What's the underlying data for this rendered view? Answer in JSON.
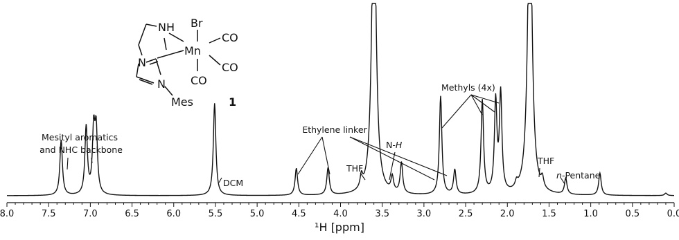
{
  "chart_data": {
    "type": "line",
    "xlabel": "¹H [ppm]",
    "xlim": [
      8.0,
      0.0
    ],
    "x_reversed": true,
    "ticks": [
      "8.0",
      "7.5",
      "7.0",
      "6.5",
      "6.0",
      "5.5",
      "5.0",
      "4.5",
      "4.0",
      "3.5",
      "3.0",
      "2.5",
      "2.0",
      "1.5",
      "1.0",
      "0.5",
      "0.0"
    ],
    "tick_values": [
      8.0,
      7.5,
      7.0,
      6.5,
      6.0,
      5.5,
      5.0,
      4.5,
      4.0,
      3.5,
      3.0,
      2.5,
      2.0,
      1.5,
      1.0,
      0.5,
      0.0
    ],
    "grid": false,
    "y_axis_shown": false,
    "series": [
      {
        "peaks": [
          {
            "ppm": 7.35,
            "height": 0.45
          },
          {
            "ppm": 7.05,
            "height": 0.55
          },
          {
            "ppm": 6.96,
            "height": 0.5
          },
          {
            "ppm": 6.93,
            "height": 0.5
          },
          {
            "ppm": 5.51,
            "height": 0.75
          },
          {
            "ppm": 4.53,
            "height": 0.22
          },
          {
            "ppm": 4.15,
            "height": 0.22
          },
          {
            "ppm": 3.75,
            "height": 0.1
          },
          {
            "ppm": 3.6,
            "height": 2.6
          },
          {
            "ppm": 3.38,
            "height": 0.12
          },
          {
            "ppm": 3.27,
            "height": 0.25
          },
          {
            "ppm": 2.8,
            "height": 0.8
          },
          {
            "ppm": 2.63,
            "height": 0.2
          },
          {
            "ppm": 2.3,
            "height": 0.76
          },
          {
            "ppm": 2.14,
            "height": 0.74
          },
          {
            "ppm": 2.08,
            "height": 0.8
          },
          {
            "ppm": 1.89,
            "height": 0.05
          },
          {
            "ppm": 1.73,
            "height": 2.6
          },
          {
            "ppm": 1.58,
            "height": 0.08
          },
          {
            "ppm": 1.3,
            "height": 0.13
          },
          {
            "ppm": 0.89,
            "height": 0.18
          },
          {
            "ppm": 0.1,
            "height": 0.02
          }
        ]
      }
    ],
    "annotations": [
      {
        "text": "Mesityl aromatics"
      },
      {
        "text": "and NHC backbone"
      },
      {
        "text": "DCM"
      },
      {
        "text": "Ethylene linker"
      },
      {
        "text": "THF"
      },
      {
        "text": "N-"
      },
      {
        "text": "H"
      },
      {
        "text": "Methyls (4x)"
      },
      {
        "text": "THF"
      },
      {
        "text": "n"
      },
      {
        "text": "-Pentane"
      }
    ]
  },
  "molecule": {
    "atoms": {
      "br": "Br",
      "n_amine": "N",
      "h_amine": "H",
      "mn": "Mn",
      "co1": "CO",
      "co2": "CO",
      "co3": "CO",
      "n_ring1": "N",
      "n_ring2": "N",
      "mes": "Mes"
    },
    "compound_number": "1"
  }
}
